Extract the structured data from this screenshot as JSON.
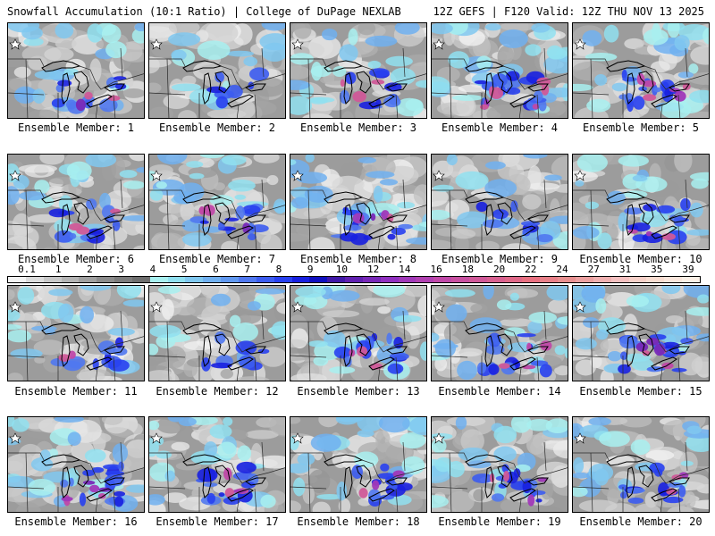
{
  "header": {
    "left": "Snowfall Accumulation (10:1 Ratio) | College of DuPage NEXLAB",
    "right": "12Z GEFS | F120 Valid: 12Z THU NOV 13 2025"
  },
  "members": [
    {
      "label": "Ensemble Member: 1",
      "intensity": 0.55
    },
    {
      "label": "Ensemble Member: 2",
      "intensity": 0.25
    },
    {
      "label": "Ensemble Member: 3",
      "intensity": 0.55
    },
    {
      "label": "Ensemble Member: 4",
      "intensity": 0.85
    },
    {
      "label": "Ensemble Member: 5",
      "intensity": 0.8
    },
    {
      "label": "Ensemble Member: 6",
      "intensity": 0.6
    },
    {
      "label": "Ensemble Member: 7",
      "intensity": 0.65
    },
    {
      "label": "Ensemble Member: 8",
      "intensity": 0.7
    },
    {
      "label": "Ensemble Member: 9",
      "intensity": 0.3
    },
    {
      "label": "Ensemble Member: 10",
      "intensity": 0.6
    },
    {
      "label": "Ensemble Member: 11",
      "intensity": 0.45
    },
    {
      "label": "Ensemble Member: 12",
      "intensity": 0.3
    },
    {
      "label": "Ensemble Member: 13",
      "intensity": 0.6
    },
    {
      "label": "Ensemble Member: 14",
      "intensity": 0.7
    },
    {
      "label": "Ensemble Member: 15",
      "intensity": 0.8
    },
    {
      "label": "Ensemble Member: 16",
      "intensity": 0.8
    },
    {
      "label": "Ensemble Member: 17",
      "intensity": 0.65
    },
    {
      "label": "Ensemble Member: 18",
      "intensity": 0.55
    },
    {
      "label": "Ensemble Member: 19",
      "intensity": 0.65
    },
    {
      "label": "Ensemble Member: 20",
      "intensity": 0.6
    }
  ],
  "colorbar": {
    "ticks": [
      "0.1",
      "1",
      "2",
      "3",
      "4",
      "5",
      "6",
      "7",
      "8",
      "9",
      "10",
      "12",
      "14",
      "16",
      "18",
      "20",
      "22",
      "24",
      "27",
      "31",
      "35",
      "39"
    ],
    "colors": [
      "#f4f4f4",
      "#dcdcdc",
      "#c8c8c8",
      "#b4b4b4",
      "#a0a0a0",
      "#8c8c8c",
      "#7c7c7c",
      "#6e6e6e",
      "#a8f0f0",
      "#90e0f0",
      "#80c8f0",
      "#70b0f0",
      "#6098f0",
      "#5078f0",
      "#3c5cf0",
      "#2840f0",
      "#1820e0",
      "#1010c0",
      "#4018a8",
      "#6020b0",
      "#7828b8",
      "#9030c0",
      "#a038b8",
      "#b040b0",
      "#c048a8",
      "#c850a0",
      "#d05898",
      "#d86090",
      "#e06888",
      "#e87080",
      "#e88088",
      "#e89090",
      "#eca0a0",
      "#f0b0b0",
      "#f4c0c0",
      "#f6d0c8",
      "#f8dcd0",
      "#fae6dc",
      "#fcf0e6"
    ]
  }
}
